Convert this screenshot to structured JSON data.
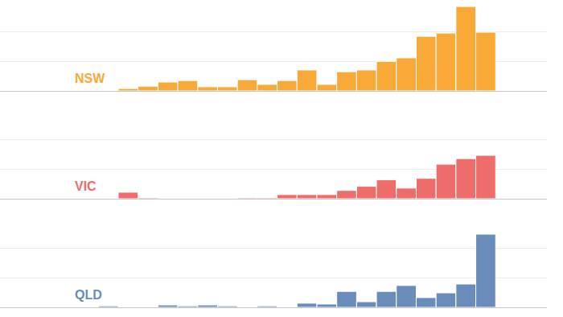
{
  "chart_data": [
    {
      "type": "bar",
      "title": "NSW",
      "categories": [
        null,
        null,
        null,
        null,
        null,
        null,
        null,
        null,
        null,
        null,
        null,
        null,
        null,
        null,
        null,
        null,
        null,
        null,
        null,
        null
      ],
      "values": [
        0,
        0.8,
        1.6,
        3,
        3.5,
        1.4,
        1.4,
        3.8,
        2.2,
        3.5,
        7.1,
        2.2,
        6.5,
        7.1,
        10,
        11.2,
        18.5,
        19.6,
        28.6,
        19.9
      ],
      "color": "#f8a937",
      "ylim": [
        0,
        30
      ],
      "yticks": [
        0,
        10,
        20,
        30
      ],
      "grid": true,
      "tick_labels": false
    },
    {
      "type": "bar",
      "title": "VIC",
      "categories": [
        null,
        null,
        null,
        null,
        null,
        null,
        null,
        null,
        null,
        null,
        null,
        null,
        null,
        null,
        null,
        null,
        null,
        null,
        null,
        null
      ],
      "values": [
        0,
        2.2,
        0.3,
        0,
        0,
        0,
        0,
        0.3,
        0.3,
        1.4,
        1.4,
        1.4,
        2.8,
        4.2,
        6.4,
        3.6,
        6.9,
        11.7,
        13.6,
        14.7
      ],
      "color": "#ee6d6b",
      "ylim": [
        0,
        30
      ],
      "yticks": [
        0,
        10,
        20,
        30
      ],
      "grid": true,
      "tick_labels": false
    },
    {
      "type": "bar",
      "title": "QLD",
      "categories": [
        null,
        null,
        null,
        null,
        null,
        null,
        null,
        null,
        null,
        null,
        null,
        null,
        null,
        null,
        null,
        null,
        null,
        null,
        null,
        null
      ],
      "values": [
        0.5,
        0,
        0,
        0.8,
        0.5,
        0.8,
        0.5,
        0,
        0.5,
        0,
        1.4,
        1.1,
        5.4,
        1.9,
        5.4,
        7.4,
        3.3,
        4.9,
        7.9,
        24.8
      ],
      "color": "#6a8cbb",
      "ylim": [
        0,
        30
      ],
      "yticks": [
        0,
        10,
        20,
        30
      ],
      "grid": true,
      "tick_labels": false
    }
  ]
}
